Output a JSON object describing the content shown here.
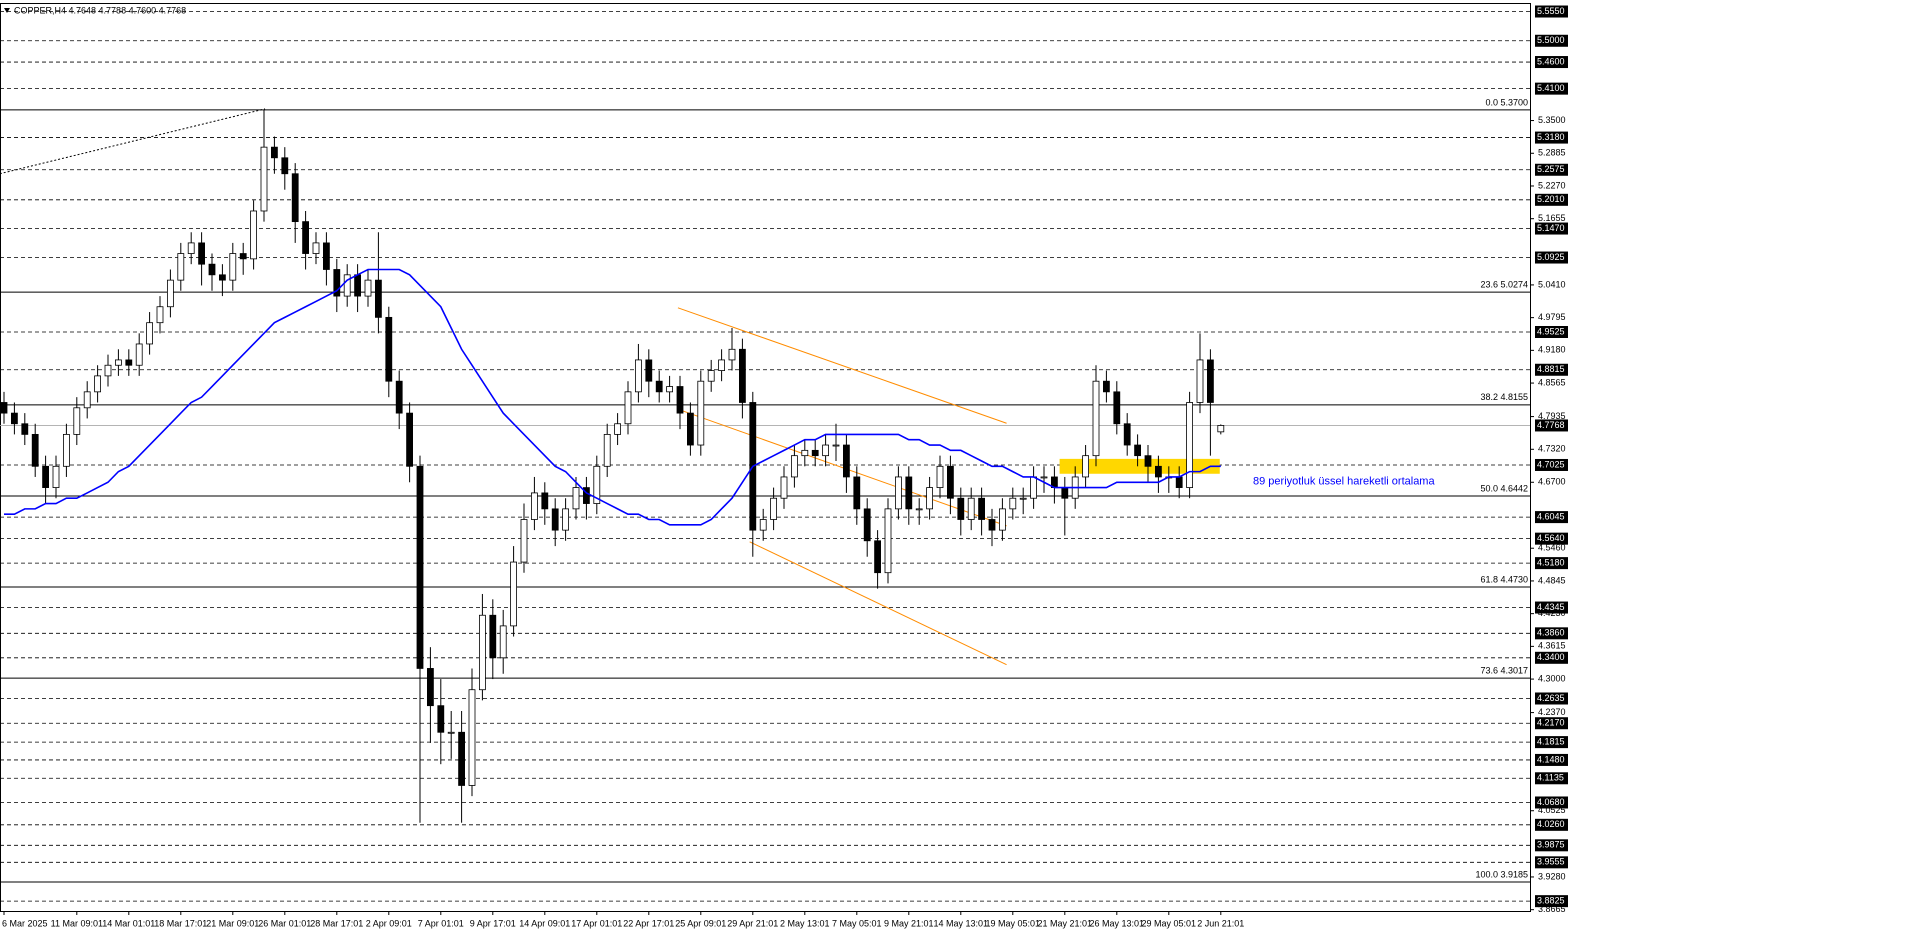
{
  "chart_data": {
    "type": "candlestick",
    "title": "COPPER,H4 4.7648 4.7788 4.7600 4.7768",
    "categories": [
      "6 Mar 2025",
      null,
      null,
      null,
      null,
      null,
      null,
      "11 Mar 09:01",
      null,
      null,
      null,
      null,
      "14 Mar 01:01",
      null,
      null,
      null,
      null,
      "18 Mar 17:01",
      null,
      null,
      null,
      null,
      "21 Mar 09:01",
      null,
      null,
      null,
      null,
      "26 Mar 01:01",
      null,
      null,
      null,
      null,
      "28 Mar 17:01",
      null,
      null,
      null,
      null,
      "2 Apr 09:01",
      null,
      null,
      null,
      null,
      "7 Apr 01:01",
      null,
      null,
      null,
      null,
      "9 Apr 17:01",
      null,
      null,
      null,
      null,
      "14 Apr 09:01",
      null,
      null,
      null,
      null,
      "17 Apr 01:01",
      null,
      null,
      null,
      null,
      "22 Apr 17:01",
      null,
      null,
      null,
      null,
      "25 Apr 09:01",
      null,
      null,
      null,
      null,
      "29 Apr 21:01",
      null,
      null,
      null,
      null,
      "2 May 13:01",
      null,
      null,
      null,
      null,
      "7 May 05:01",
      null,
      null,
      null,
      null,
      "9 May 21:01",
      null,
      null,
      null,
      null,
      "14 May 13:01",
      null,
      null,
      null,
      null,
      "19 May 05:01",
      null,
      null,
      null,
      null,
      "21 May 21:01",
      null,
      null,
      null,
      null,
      "26 May 13:01",
      null,
      null,
      null,
      null,
      "29 May 05:01",
      null,
      null,
      null,
      null,
      "2 Jun 21:01"
    ],
    "open": [
      4.82,
      4.8,
      4.78,
      4.76,
      4.7,
      4.66,
      4.7,
      4.76,
      4.81,
      4.84,
      4.87,
      4.89,
      4.9,
      4.89,
      4.93,
      4.97,
      5.0,
      5.05,
      5.1,
      5.12,
      5.08,
      5.06,
      5.05,
      5.1,
      5.09,
      5.18,
      5.3,
      5.28,
      5.25,
      5.16,
      5.1,
      5.12,
      5.07,
      5.02,
      5.06,
      5.02,
      5.05,
      4.98,
      4.86,
      4.8,
      4.7,
      4.32,
      4.25,
      4.2,
      4.2,
      4.1,
      4.28,
      4.42,
      4.34,
      4.4,
      4.52,
      4.6,
      4.65,
      4.62,
      4.58,
      4.62,
      4.66,
      4.63,
      4.7,
      4.76,
      4.78,
      4.84,
      4.9,
      4.86,
      4.84,
      4.85,
      4.8,
      4.74,
      4.86,
      4.88,
      4.9,
      4.92,
      4.82,
      4.58,
      4.6,
      4.64,
      4.68,
      4.72,
      4.73,
      4.72,
      4.74,
      4.74,
      4.68,
      4.62,
      4.56,
      4.5,
      4.62,
      4.68,
      4.62,
      4.62,
      4.66,
      4.7,
      4.64,
      4.6,
      4.64,
      4.6,
      4.58,
      4.62,
      4.64,
      4.64,
      4.68,
      4.68,
      4.66,
      4.64,
      4.68,
      4.72,
      4.86,
      4.84,
      4.78,
      4.74,
      4.72,
      4.7,
      4.68,
      4.68,
      4.66,
      4.82,
      4.9,
      4.7648
    ],
    "high": [
      4.84,
      4.82,
      4.8,
      4.78,
      4.72,
      4.72,
      4.78,
      4.83,
      4.86,
      4.89,
      4.91,
      4.92,
      4.92,
      4.95,
      4.99,
      5.02,
      5.07,
      5.12,
      5.14,
      5.14,
      5.1,
      5.08,
      5.12,
      5.12,
      5.2,
      5.37,
      5.32,
      5.3,
      5.27,
      5.18,
      5.14,
      5.14,
      5.09,
      5.08,
      5.08,
      5.07,
      5.14,
      5.0,
      4.88,
      4.82,
      4.72,
      4.36,
      4.3,
      4.24,
      4.24,
      4.32,
      4.46,
      4.45,
      4.43,
      4.55,
      4.63,
      4.68,
      4.67,
      4.64,
      4.64,
      4.68,
      4.68,
      4.72,
      4.78,
      4.8,
      4.86,
      4.93,
      4.92,
      4.88,
      4.87,
      4.87,
      4.82,
      4.88,
      4.9,
      4.92,
      4.96,
      4.94,
      4.84,
      4.62,
      4.66,
      4.7,
      4.74,
      4.75,
      4.75,
      4.76,
      4.78,
      4.76,
      4.7,
      4.64,
      4.58,
      4.64,
      4.7,
      4.7,
      4.64,
      4.68,
      4.72,
      4.72,
      4.66,
      4.66,
      4.66,
      4.62,
      4.64,
      4.66,
      4.66,
      4.7,
      4.7,
      4.7,
      4.68,
      4.7,
      4.74,
      4.89,
      4.88,
      4.86,
      4.8,
      4.76,
      4.74,
      4.72,
      4.7,
      4.7,
      4.84,
      4.95,
      4.92,
      4.7788
    ],
    "low": [
      4.78,
      4.76,
      4.74,
      4.68,
      4.63,
      4.64,
      4.68,
      4.74,
      4.79,
      4.82,
      4.85,
      4.87,
      4.87,
      4.87,
      4.91,
      4.95,
      4.98,
      5.03,
      5.08,
      5.04,
      5.03,
      5.02,
      5.03,
      5.06,
      5.07,
      5.16,
      5.25,
      5.22,
      5.12,
      5.07,
      5.08,
      5.04,
      4.99,
      5.0,
      4.99,
      5.0,
      4.95,
      4.83,
      4.77,
      4.67,
      4.03,
      4.18,
      4.14,
      4.15,
      4.03,
      4.08,
      4.26,
      4.3,
      4.31,
      4.38,
      4.5,
      4.58,
      4.59,
      4.55,
      4.56,
      4.6,
      4.6,
      4.61,
      4.68,
      4.74,
      4.76,
      4.82,
      4.83,
      4.82,
      4.82,
      4.77,
      4.72,
      4.72,
      4.84,
      4.86,
      4.88,
      4.79,
      4.53,
      4.56,
      4.58,
      4.62,
      4.66,
      4.7,
      4.7,
      4.7,
      4.71,
      4.65,
      4.59,
      4.53,
      4.47,
      4.48,
      4.6,
      4.59,
      4.59,
      4.6,
      4.64,
      4.61,
      4.57,
      4.58,
      4.57,
      4.55,
      4.56,
      4.6,
      4.61,
      4.62,
      4.65,
      4.63,
      4.57,
      4.62,
      4.66,
      4.7,
      4.82,
      4.76,
      4.72,
      4.7,
      4.67,
      4.65,
      4.65,
      4.64,
      4.64,
      4.8,
      4.72,
      4.76
    ],
    "close": [
      4.8,
      4.78,
      4.76,
      4.7,
      4.66,
      4.7,
      4.76,
      4.81,
      4.84,
      4.87,
      4.89,
      4.9,
      4.89,
      4.93,
      4.97,
      5.0,
      5.05,
      5.1,
      5.12,
      5.08,
      5.06,
      5.05,
      5.1,
      5.09,
      5.18,
      5.3,
      5.28,
      5.25,
      5.16,
      5.1,
      5.12,
      5.07,
      5.02,
      5.06,
      5.02,
      5.05,
      4.98,
      4.86,
      4.8,
      4.7,
      4.32,
      4.25,
      4.2,
      4.2,
      4.1,
      4.28,
      4.42,
      4.34,
      4.4,
      4.52,
      4.6,
      4.65,
      4.62,
      4.58,
      4.62,
      4.66,
      4.63,
      4.7,
      4.76,
      4.78,
      4.84,
      4.9,
      4.86,
      4.84,
      4.85,
      4.8,
      4.74,
      4.86,
      4.88,
      4.9,
      4.92,
      4.82,
      4.58,
      4.6,
      4.64,
      4.68,
      4.72,
      4.73,
      4.72,
      4.74,
      4.74,
      4.68,
      4.62,
      4.56,
      4.5,
      4.62,
      4.68,
      4.62,
      4.62,
      4.66,
      4.7,
      4.64,
      4.6,
      4.64,
      4.6,
      4.58,
      4.62,
      4.64,
      4.64,
      4.68,
      4.68,
      4.66,
      4.64,
      4.68,
      4.72,
      4.86,
      4.84,
      4.78,
      4.74,
      4.72,
      4.7,
      4.68,
      4.68,
      4.66,
      4.82,
      4.9,
      4.82,
      4.7768
    ],
    "color": "#000000",
    "ema": {
      "label": "89 periyotluk üssel hareketli ortalama",
      "color": "#0000ff",
      "values": [
        4.61,
        4.61,
        4.62,
        4.62,
        4.63,
        4.63,
        4.64,
        4.64,
        4.65,
        4.66,
        4.67,
        4.69,
        4.7,
        4.72,
        4.74,
        4.76,
        4.78,
        4.8,
        4.82,
        4.83,
        4.85,
        4.87,
        4.89,
        4.91,
        4.93,
        4.95,
        4.97,
        4.98,
        4.99,
        5.0,
        5.01,
        5.02,
        5.03,
        5.05,
        5.06,
        5.07,
        5.07,
        5.07,
        5.07,
        5.06,
        5.04,
        5.02,
        5.0,
        4.96,
        4.92,
        4.89,
        4.86,
        4.83,
        4.8,
        4.78,
        4.76,
        4.74,
        4.72,
        4.7,
        4.69,
        4.67,
        4.65,
        4.64,
        4.63,
        4.62,
        4.61,
        4.61,
        4.6,
        4.6,
        4.59,
        4.59,
        4.59,
        4.59,
        4.6,
        4.62,
        4.64,
        4.67,
        4.7,
        4.71,
        4.72,
        4.73,
        4.74,
        4.75,
        4.75,
        4.76,
        4.76,
        4.76,
        4.76,
        4.76,
        4.76,
        4.76,
        4.76,
        4.75,
        4.75,
        4.74,
        4.74,
        4.73,
        4.73,
        4.72,
        4.71,
        4.7,
        4.7,
        4.69,
        4.68,
        4.68,
        4.67,
        4.66,
        4.66,
        4.66,
        4.66,
        4.66,
        4.66,
        4.67,
        4.67,
        4.67,
        4.67,
        4.67,
        4.68,
        4.68,
        4.69,
        4.69,
        4.7,
        4.7
      ]
    },
    "trendlines": [
      {
        "color": "#000000",
        "style": "dotted",
        "x": [
          -0.4,
          25.1
        ],
        "y": [
          5.25,
          5.372
        ]
      },
      {
        "color": "#ff8c00",
        "style": "solid",
        "x": [
          64.8,
          96.4
        ],
        "y": [
          4.998,
          4.781
        ]
      },
      {
        "color": "#ff8c00",
        "style": "solid",
        "x": [
          65.0,
          96.4
        ],
        "y": [
          4.806,
          4.588
        ]
      },
      {
        "color": "#ff8c00",
        "style": "solid",
        "x": [
          71.7,
          96.4
        ],
        "y": [
          4.558,
          4.327
        ]
      }
    ],
    "zones": [
      {
        "color": "#ffd700",
        "x": [
          101.5,
          116.9
        ],
        "y": [
          4.686,
          4.714
        ]
      }
    ],
    "fib_levels": [
      {
        "value": 5.37,
        "label": "0.0 5.3700"
      },
      {
        "value": 5.0274,
        "label": "23.6 5.0274"
      },
      {
        "value": 4.8155,
        "label": "38.2 4.8155"
      },
      {
        "value": 4.6442,
        "label": "50.0 4.6442"
      },
      {
        "value": 4.473,
        "label": "61.8 4.4730"
      },
      {
        "value": 4.3017,
        "label": "73.6 4.3017"
      },
      {
        "value": 3.9185,
        "label": "100.0 3.9185"
      }
    ],
    "levels": [
      {
        "value": 5.555,
        "label": "5.5550"
      },
      {
        "value": 5.5,
        "label": "5.5000"
      },
      {
        "value": 5.46,
        "label": "5.4600"
      },
      {
        "value": 5.41,
        "label": "5.4100"
      },
      {
        "value": 5.318,
        "label": "5.3180"
      },
      5.2575,
      {
        "value": 5.201,
        "label": "5.2010"
      },
      {
        "value": 5.147,
        "label": "5.1470"
      },
      5.0925,
      4.9525,
      4.8815,
      4.7025,
      4.6045,
      {
        "value": 4.564,
        "label": "4.5640"
      },
      {
        "value": 4.518,
        "label": "4.5180"
      },
      4.4345,
      {
        "value": 4.386,
        "label": "4.3860"
      },
      {
        "value": 4.34,
        "label": "4.3400"
      },
      4.2635,
      {
        "value": 4.217,
        "label": "4.2170"
      },
      4.1815,
      {
        "value": 4.148,
        "label": "4.1480"
      },
      4.1135,
      {
        "value": 4.068,
        "label": "4.0680"
      },
      {
        "value": 4.026,
        "label": "4.0260"
      },
      3.9875,
      3.9555,
      3.8825
    ],
    "yticks": [
      {
        "value": 5.35,
        "label": "5.3500"
      },
      5.2885,
      {
        "value": 5.227,
        "label": "5.2270"
      },
      5.1655,
      {
        "value": 5.041,
        "label": "5.0410"
      },
      4.9795,
      {
        "value": 4.918,
        "label": "4.9180"
      },
      4.8565,
      4.7935,
      {
        "value": 4.732,
        "label": "4.7320"
      },
      {
        "value": 4.67,
        "label": "4.6700"
      },
      {
        "value": 4.546,
        "label": "4.5460"
      },
      4.4845,
      {
        "value": 4.423,
        "label": "4.4230"
      },
      4.3615,
      {
        "value": 4.3,
        "label": "4.3000"
      },
      {
        "value": 4.237,
        "label": "4.2370"
      },
      4.0525,
      {
        "value": 3.928,
        "label": "3.9280"
      },
      3.8665
    ],
    "ylim": [
      3.864,
      5.571
    ]
  }
}
